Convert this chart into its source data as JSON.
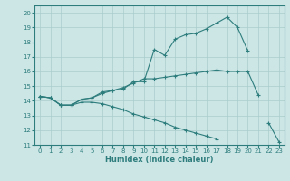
{
  "xlabel": "Humidex (Indice chaleur)",
  "ylabel": "",
  "xlim": [
    -0.5,
    23.5
  ],
  "ylim": [
    11,
    20.5
  ],
  "xticks": [
    0,
    1,
    2,
    3,
    4,
    5,
    6,
    7,
    8,
    9,
    10,
    11,
    12,
    13,
    14,
    15,
    16,
    17,
    18,
    19,
    20,
    21,
    22,
    23
  ],
  "yticks": [
    11,
    12,
    13,
    14,
    15,
    16,
    17,
    18,
    19,
    20
  ],
  "bg_color": "#cce5e5",
  "line_color": "#2e7d7d",
  "grid_color": "#aacccc",
  "line1_y": [
    14.3,
    14.2,
    13.7,
    13.7,
    14.1,
    14.2,
    14.6,
    14.7,
    14.8,
    15.3,
    15.3,
    17.5,
    17.1,
    18.2,
    18.5,
    18.6,
    18.9,
    19.3,
    19.7,
    19.0,
    17.4,
    null,
    null,
    null
  ],
  "line2_y": [
    14.3,
    14.2,
    13.7,
    13.7,
    14.1,
    14.2,
    14.5,
    14.7,
    14.9,
    15.2,
    15.5,
    15.5,
    15.6,
    15.7,
    15.8,
    15.9,
    16.0,
    16.1,
    16.0,
    16.0,
    16.0,
    14.4,
    null,
    null
  ],
  "line3_y": [
    14.3,
    14.2,
    13.7,
    13.7,
    13.9,
    13.9,
    13.8,
    13.6,
    13.4,
    13.1,
    12.9,
    12.7,
    12.5,
    12.2,
    12.0,
    11.8,
    11.6,
    11.4,
    null,
    null,
    null,
    null,
    12.5,
    11.2
  ]
}
